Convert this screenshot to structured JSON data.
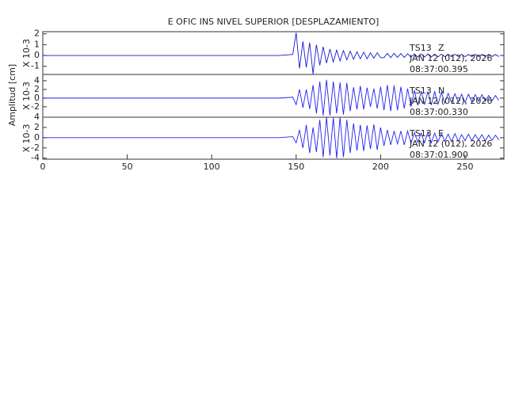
{
  "title": "E OFIC INS NIVEL SUPERIOR [DESPLAZAMIENTO]",
  "ylabel": "Amplitud [cm]",
  "chart_data": [
    {
      "type": "line",
      "ylabel": "X 10-3",
      "xlim": [
        0,
        273
      ],
      "ylim": [
        -1.75,
        2.2
      ],
      "yticks": [
        -1,
        0,
        1,
        2
      ],
      "annotations": [
        "TS13",
        "Z",
        "JAN 12 (012), 2026",
        "08:37:00.395"
      ],
      "x": [
        0,
        50,
        100,
        140,
        148,
        150,
        152,
        154,
        156,
        158,
        160,
        162,
        164,
        166,
        168,
        170,
        172,
        174,
        176,
        178,
        180,
        182,
        184,
        186,
        188,
        190,
        192,
        194,
        196,
        198,
        200,
        202,
        204,
        206,
        208,
        210,
        212,
        214,
        216,
        218,
        220,
        222,
        224,
        226,
        228,
        230,
        232,
        234,
        236,
        238,
        240,
        242,
        244,
        246,
        248,
        250,
        252,
        254,
        256,
        258,
        260,
        262,
        264,
        266,
        268,
        270
      ],
      "series": [
        {
          "color": "#1a1acc",
          "values": [
            0,
            0,
            0,
            0,
            0.1,
            2.1,
            -1.2,
            1.3,
            -1.1,
            1.2,
            -1.7,
            1.0,
            -0.9,
            0.8,
            -0.7,
            0.6,
            -0.6,
            0.5,
            -0.5,
            0.45,
            -0.4,
            0.4,
            -0.35,
            0.35,
            -0.3,
            0.3,
            -0.3,
            0.25,
            -0.25,
            0.25,
            -0.2,
            -0.2,
            0.2,
            -0.2,
            0.2,
            -0.18,
            0.18,
            -0.18,
            0.16,
            -0.16,
            0.15,
            -0.15,
            0.15,
            -0.14,
            0.14,
            -0.14,
            0.13,
            -0.13,
            0.13,
            -0.12,
            0.12,
            -0.12,
            0.12,
            -0.11,
            0.11,
            -0.11,
            0.1,
            -0.1,
            0.1,
            -0.1,
            0.1,
            -0.1,
            0.1,
            -0.1,
            0.1,
            -0.1
          ]
        }
      ]
    },
    {
      "type": "line",
      "ylabel": "X 10-3",
      "xlim": [
        0,
        273
      ],
      "ylim": [
        -4.4,
        5.45
      ],
      "yticks": [
        -2,
        0,
        2,
        4
      ],
      "annotations": [
        "TS13",
        "N",
        "JAN 12 (012), 2026",
        "08:37:00.330"
      ],
      "x": [
        0,
        50,
        100,
        140,
        148,
        150,
        152,
        154,
        156,
        158,
        160,
        162,
        164,
        166,
        168,
        170,
        172,
        174,
        176,
        178,
        180,
        182,
        184,
        186,
        188,
        190,
        192,
        194,
        196,
        198,
        200,
        202,
        204,
        206,
        208,
        210,
        212,
        214,
        216,
        218,
        220,
        222,
        224,
        226,
        228,
        230,
        232,
        234,
        236,
        238,
        240,
        242,
        244,
        246,
        248,
        250,
        252,
        254,
        256,
        258,
        260,
        262,
        264,
        266,
        268,
        270
      ],
      "series": [
        {
          "color": "#2222ee",
          "values": [
            0,
            0,
            0,
            0,
            0.2,
            -1.5,
            2.0,
            -2.2,
            2.0,
            -2.5,
            3.0,
            -3.5,
            3.8,
            -4.0,
            4.2,
            -4.0,
            3.8,
            -3.5,
            3.6,
            -3.8,
            3.5,
            -3.0,
            2.5,
            -2.6,
            2.8,
            -2.6,
            2.4,
            -2.0,
            2.2,
            -2.4,
            2.6,
            -2.8,
            3.0,
            -3.0,
            2.9,
            -2.8,
            2.6,
            -2.4,
            2.2,
            -2.0,
            1.8,
            -1.7,
            1.6,
            -1.5,
            1.5,
            -1.6,
            1.5,
            -1.4,
            1.3,
            -1.2,
            1.1,
            -1.0,
            1.0,
            -0.9,
            0.9,
            -1.0,
            0.9,
            -0.8,
            0.8,
            -0.7,
            0.8,
            -0.7,
            0.6,
            -0.6,
            0.6,
            -0.5
          ]
        }
      ]
    },
    {
      "type": "line",
      "ylabel": "X 10-3",
      "xlim": [
        0,
        273
      ],
      "ylim": [
        -4.2,
        4
      ],
      "yticks": [
        -4,
        -2,
        0,
        2,
        4
      ],
      "xticks": [
        0,
        50,
        100,
        150,
        200,
        250
      ],
      "annotations": [
        "TS13",
        "E",
        "JAN 12 (012), 2026",
        "08:37:01.900"
      ],
      "x": [
        0,
        50,
        100,
        140,
        148,
        150,
        152,
        154,
        156,
        158,
        160,
        162,
        164,
        166,
        168,
        170,
        172,
        174,
        176,
        178,
        180,
        182,
        184,
        186,
        188,
        190,
        192,
        194,
        196,
        198,
        200,
        202,
        204,
        206,
        208,
        210,
        212,
        214,
        216,
        218,
        220,
        222,
        224,
        226,
        228,
        230,
        232,
        234,
        236,
        238,
        240,
        242,
        244,
        246,
        248,
        250,
        252,
        254,
        256,
        258,
        260,
        262,
        264,
        266,
        268,
        270
      ],
      "series": [
        {
          "color": "#2222ee",
          "values": [
            0,
            0,
            0,
            0,
            0.2,
            -1.0,
            1.5,
            -2.0,
            2.5,
            -3.0,
            2.0,
            -2.8,
            3.5,
            -3.8,
            4.0,
            -3.5,
            3.9,
            -4.0,
            4.0,
            -3.8,
            3.5,
            -3.0,
            2.8,
            -2.5,
            2.5,
            -2.6,
            2.4,
            -2.2,
            2.6,
            -2.4,
            2.0,
            -1.6,
            1.5,
            -1.4,
            1.3,
            -1.2,
            1.3,
            -1.4,
            1.3,
            -1.1,
            1.0,
            -0.9,
            0.9,
            -1.0,
            1.1,
            -1.0,
            0.9,
            -0.8,
            0.8,
            -0.7,
            0.7,
            -0.8,
            0.8,
            -0.7,
            0.6,
            -0.6,
            0.7,
            -0.6,
            0.6,
            -0.5,
            0.6,
            -0.6,
            0.5,
            -0.5,
            0.5,
            -0.4
          ]
        }
      ]
    }
  ]
}
